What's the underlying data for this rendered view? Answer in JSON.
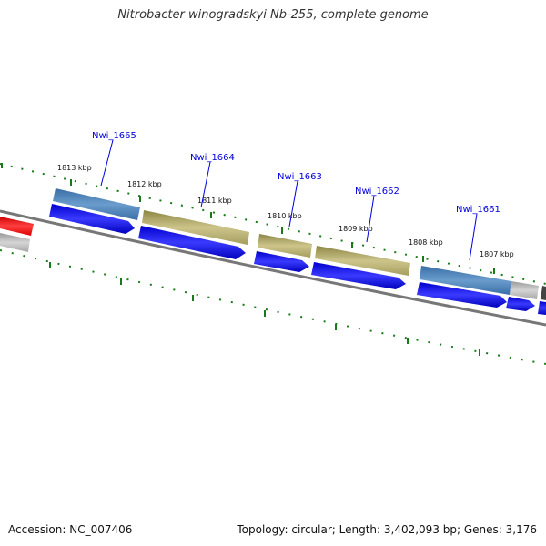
{
  "header": {
    "title": "Nitrobacter winogradskyi Nb-255, complete genome"
  },
  "footer": {
    "accession": "Accession: NC_007406",
    "summary": "Topology: circular; Length: 3,402,093 bp; Genes: 3,176"
  },
  "colors": {
    "cds_strand": "#1a1aee",
    "cog_blue": "#4a80b8",
    "cog_khaki": "#b8b070",
    "cog_grey": "#b0b0b0",
    "cog_red": "#ee1111",
    "backbone": "#808080",
    "tick": "#1a7a1a",
    "label": "#0000dd"
  },
  "map": {
    "kbp_labels": [
      "1813 kbp",
      "1812 kbp",
      "1811 kbp",
      "1810 kbp",
      "1809 kbp",
      "1808 kbp",
      "1807 kbp"
    ],
    "genes": [
      {
        "locus": "Nwi_1665",
        "cog_color": "blue"
      },
      {
        "locus": "Nwi_1664",
        "cog_color": "khaki"
      },
      {
        "locus": "Nwi_1663",
        "cog_color": "khaki"
      },
      {
        "locus": "Nwi_1662",
        "cog_color": "khaki"
      },
      {
        "locus": "Nwi_1661",
        "cog_color": "blue"
      }
    ]
  }
}
